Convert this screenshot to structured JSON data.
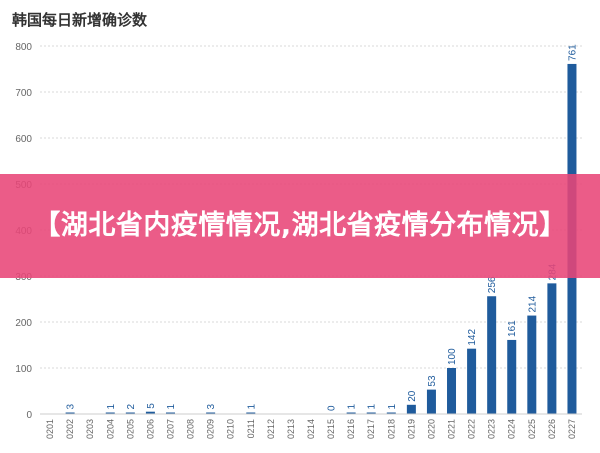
{
  "chart_data": {
    "type": "bar",
    "title": "韩国每日新增确诊数",
    "xlabel": "",
    "ylabel": "",
    "ylim": [
      0,
      800
    ],
    "yticks": [
      0,
      100,
      200,
      300,
      400,
      500,
      600,
      700,
      800
    ],
    "grid": true,
    "bar_color": "#1f5b9c",
    "categories": [
      "0201",
      "0202",
      "0203",
      "0204",
      "0205",
      "0206",
      "0207",
      "0208",
      "0209",
      "0210",
      "0211",
      "0212",
      "0213",
      "0214",
      "0215",
      "0216",
      "0217",
      "0218",
      "0219",
      "0220",
      "0221",
      "0222",
      "0223",
      "0224",
      "0225",
      "0226",
      "0227"
    ],
    "values": [
      0,
      3,
      0,
      1,
      2,
      5,
      1,
      0,
      3,
      0,
      1,
      0,
      0,
      0,
      0,
      1,
      1,
      1,
      20,
      53,
      100,
      142,
      256,
      161,
      214,
      284,
      761
    ],
    "labels": [
      "",
      "3",
      "",
      "1",
      "2",
      "5",
      "1",
      "",
      "3",
      "",
      "1",
      "",
      "",
      "",
      "0",
      "1",
      "1",
      "1",
      "20",
      "53",
      "100",
      "142",
      "256",
      "161",
      "214",
      "284",
      "761"
    ]
  },
  "overlay": {
    "text": "【湖北省内疫情情况,湖北省疫情分布情况】",
    "color": "#e84678"
  }
}
